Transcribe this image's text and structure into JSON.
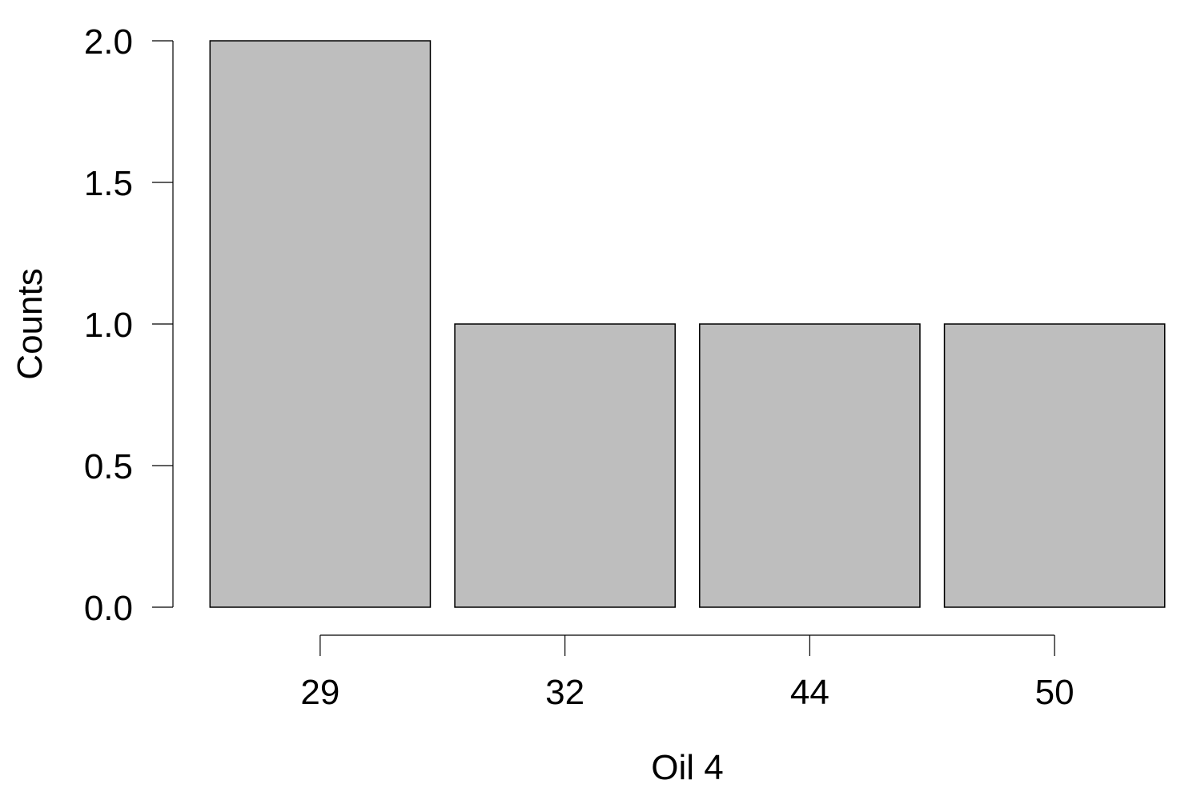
{
  "chart_data": {
    "type": "bar",
    "categories": [
      "29",
      "32",
      "44",
      "50"
    ],
    "values": [
      2,
      1,
      1,
      1
    ],
    "xlabel": "Oil 4",
    "ylabel": "Counts",
    "ylim": [
      0,
      2
    ],
    "yticks": [
      "0.0",
      "0.5",
      "1.0",
      "1.5",
      "2.0"
    ],
    "ytick_values": [
      0,
      0.5,
      1.0,
      1.5,
      2.0
    ],
    "grid": false,
    "bar_fill": "#bebebe",
    "bar_stroke": "#000000"
  }
}
